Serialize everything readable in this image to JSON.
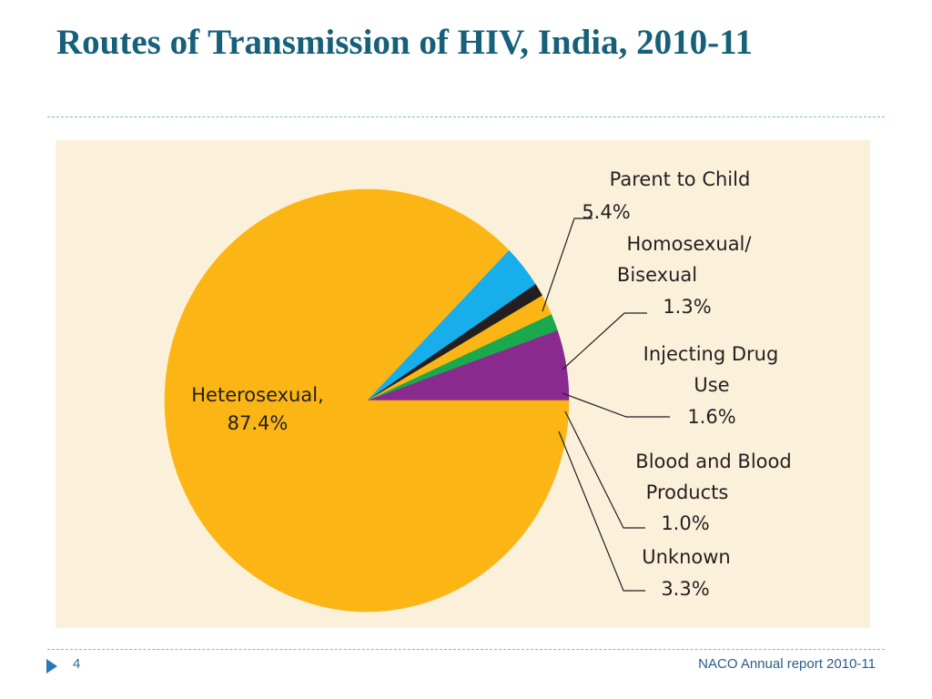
{
  "slide": {
    "title": "Routes of Transmission of HIV, India, 2010-11",
    "page_number": "4",
    "source": "NACO Annual report 2010-11"
  },
  "chart_data": {
    "type": "pie",
    "title": "",
    "start_angle_deg": 0,
    "direction": "counterclockwise",
    "slices": [
      {
        "label": "Parent to Child",
        "label_lines": [
          "Parent to Child"
        ],
        "value_text": "5.4%",
        "value": 5.4,
        "color": "#8b2a8e"
      },
      {
        "label": "Homosexual/ Bisexual",
        "label_lines": [
          "Homosexual/",
          "Bisexual"
        ],
        "value_text": "1.3%",
        "value": 1.3,
        "color": "#1aa94d"
      },
      {
        "label": "Injecting Drug Use",
        "label_lines": [
          "Injecting Drug",
          "Use"
        ],
        "value_text": "1.6%",
        "value": 1.6,
        "color": "#fbb616"
      },
      {
        "label": "Blood and Blood Products",
        "label_lines": [
          "Blood and Blood",
          "Products"
        ],
        "value_text": "1.0%",
        "value": 1.0,
        "color": "#231f20"
      },
      {
        "label": "Unknown",
        "label_lines": [
          "Unknown"
        ],
        "value_text": "3.3%",
        "value": 3.3,
        "color": "#17aeeb"
      },
      {
        "label": "Heterosexual",
        "label_lines": [
          "Heterosexual,"
        ],
        "value_text": "87.4%",
        "value": 87.4,
        "color": "#fbb616"
      }
    ]
  }
}
